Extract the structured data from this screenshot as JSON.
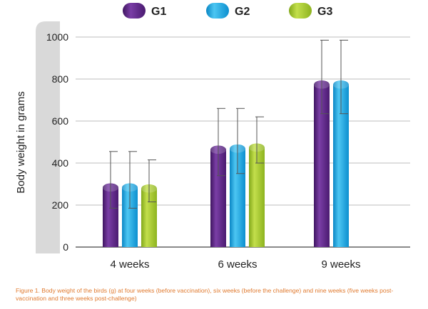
{
  "chart_data": {
    "type": "bar",
    "categories": [
      "4 weeks",
      "6 weeks",
      "9 weeks"
    ],
    "series": [
      {
        "name": "G1",
        "color": "#5e2a84",
        "values": [
          320,
          500,
          810
        ],
        "errors": [
          135,
          160,
          175
        ]
      },
      {
        "name": "G2",
        "color": "#16a8e2",
        "values": [
          320,
          505,
          810
        ],
        "errors": [
          135,
          155,
          175
        ]
      },
      {
        "name": "G3",
        "color": "#a2c52a",
        "values": [
          315,
          510,
          null
        ],
        "errors": [
          100,
          110,
          null
        ]
      }
    ],
    "ylabel": "Body weight in grams",
    "xlabel": "",
    "ylim": [
      0,
      1000
    ],
    "yticks": [
      0,
      200,
      400,
      600,
      800,
      1000
    ],
    "grid": true,
    "legend_position": "top"
  },
  "caption": "Figure 1. Body weight of the birds (g) at four weeks (before vaccination), six weeks (before the challenge) and nine weeks (five weeks post-vaccination and three weeks post-challenge)"
}
